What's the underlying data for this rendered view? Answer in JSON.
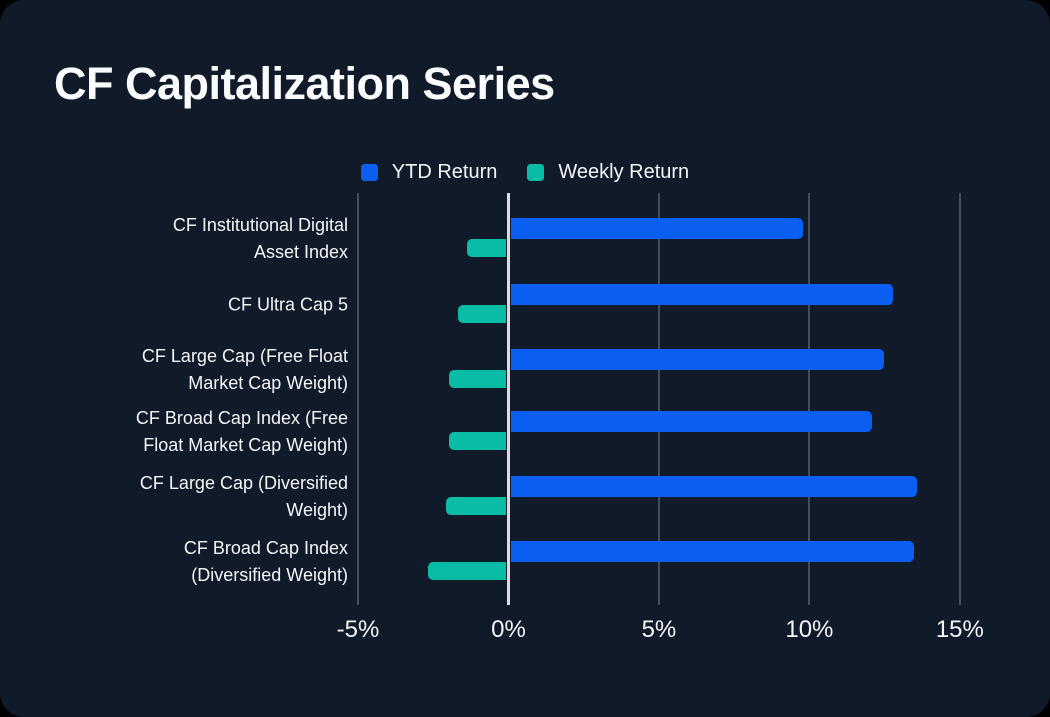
{
  "chart_data": {
    "type": "bar",
    "orientation": "horizontal",
    "title": "CF Capitalization Series",
    "categories": [
      "CF Institutional Digital Asset Index",
      "CF Ultra Cap 5",
      "CF Large Cap (Free Float Market Cap Weight)",
      "CF Broad Cap Index (Free Float Market Cap Weight)",
      "CF Large Cap (Diversified Weight)",
      "CF Broad Cap Index (Diversified Weight)"
    ],
    "category_label_lines": [
      [
        "CF Institutional Digital",
        "Asset Index"
      ],
      [
        "CF Ultra Cap 5"
      ],
      [
        "CF Large Cap (Free Float",
        "Market Cap Weight)"
      ],
      [
        "CF Broad Cap Index (Free",
        "Float Market Cap Weight)"
      ],
      [
        "CF Large Cap (Diversified",
        "Weight)"
      ],
      [
        "CF Broad Cap Index",
        "(Diversified Weight)"
      ]
    ],
    "series": [
      {
        "name": "YTD Return",
        "color": "#0B5FF0",
        "values": [
          9.7,
          12.7,
          12.4,
          12.0,
          13.5,
          13.4
        ]
      },
      {
        "name": "Weekly Return",
        "color": "#08BCA6",
        "values": [
          -1.3,
          -1.6,
          -1.9,
          -1.9,
          -2.0,
          -2.6
        ]
      }
    ],
    "x_axis": {
      "tick_values": [
        -5,
        0,
        5,
        10,
        15
      ],
      "tick_labels": [
        "-5%",
        "0%",
        "5%",
        "10%",
        "15%"
      ],
      "range": [
        -5,
        16.6
      ],
      "unit": "%"
    },
    "grid": true,
    "legend_position": "top-center",
    "theme": {
      "background": "#111A29",
      "gridline_color": "#454D5C",
      "zeroline_color": "#D9DDE2",
      "text_color": "#F4F6F8"
    }
  }
}
